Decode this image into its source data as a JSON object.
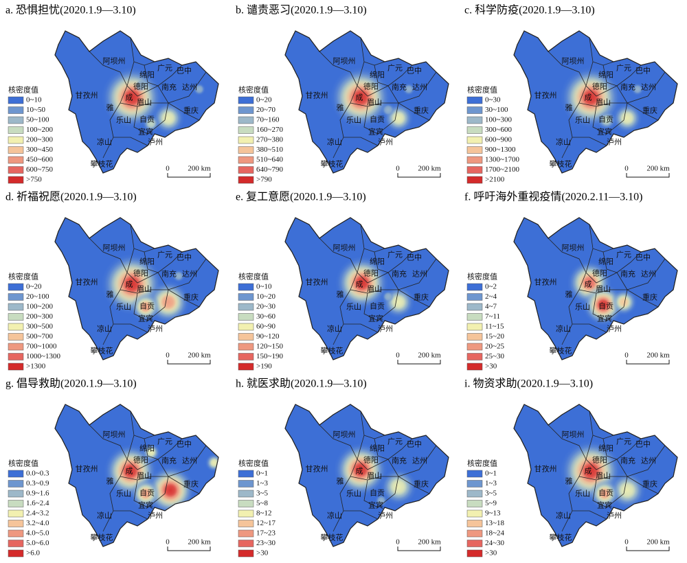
{
  "legend_title": "核密度值",
  "scale_labels": [
    "0",
    "200 km"
  ],
  "map_color": "#3d6fd6",
  "legend_colors": [
    "#3d6fd6",
    "#6e96cf",
    "#9db8c9",
    "#c8dcc0",
    "#f2f0b0",
    "#f5c49a",
    "#ee9880",
    "#e66660",
    "#d42b2b"
  ],
  "map_labels": [
    "阿坝州",
    "甘孜州",
    "凉山",
    "攀枝花",
    "成",
    "雅",
    "乐山",
    "眉山",
    "绵阳",
    "德阳",
    "广元",
    "巴中",
    "南充",
    "达州",
    "重庆",
    "宜宾",
    "泸州",
    "自贡"
  ],
  "panels": [
    {
      "title": "a. 恐惧担忧(2020.1.9—3.10)",
      "legend": [
        "0~10",
        "10~50",
        "50~100",
        "100~200",
        "200~300",
        "300~450",
        "450~600",
        "600~750",
        ">750"
      ]
    },
    {
      "title": "b. 谴责恶习(2020.1.9—3.10)",
      "legend": [
        "0~20",
        "20~70",
        "70~160",
        "160~270",
        "270~380",
        "380~510",
        "510~640",
        "640~790",
        ">790"
      ]
    },
    {
      "title": "c. 科学防疫(2020.1.9—3.10)",
      "legend": [
        "0~30",
        "30~100",
        "100~300",
        "300~600",
        "600~900",
        "900~1300",
        "1300~1700",
        "1700~2100",
        ">2100"
      ]
    },
    {
      "title": "d. 祈福祝愿(2020.1.9—3.10)",
      "legend": [
        "0~20",
        "20~100",
        "100~200",
        "200~300",
        "300~500",
        "500~700",
        "700~1000",
        "1000~1300",
        ">1300"
      ]
    },
    {
      "title": "e. 复工意愿(2020.1.9—3.10)",
      "legend": [
        "0~10",
        "10~20",
        "20~30",
        "30~60",
        "60~90",
        "90~120",
        "120~150",
        "150~190",
        ">190"
      ]
    },
    {
      "title": "f. 呼吁海外重视疫情(2020.2.11—3.10)",
      "legend": [
        "0~2",
        "2~4",
        "4~7",
        "7~11",
        "11~15",
        "15~20",
        "20~25",
        "25~30",
        ">30"
      ]
    },
    {
      "title": "g. 倡导救助(2020.1.9—3.10)",
      "legend": [
        "0.0~0.3",
        "0.3~0.9",
        "0.9~1.6",
        "1.6~2.4",
        "2.4~3.2",
        "3.2~4.0",
        "4.0~5.0",
        "5.0~6.0",
        ">6.0"
      ]
    },
    {
      "title": "h. 就医求助(2020.1.9—3.10)",
      "legend": [
        "0~1",
        "1~3",
        "3~5",
        "5~8",
        "8~12",
        "12~17",
        "17~23",
        "23~30",
        ">30"
      ]
    },
    {
      "title": "i. 物资求助(2020.1.9—3.10)",
      "legend": [
        "0~1",
        "1~3",
        "3~5",
        "5~9",
        "9~13",
        "13~18",
        "18~24",
        "24~30",
        ">30"
      ]
    }
  ]
}
